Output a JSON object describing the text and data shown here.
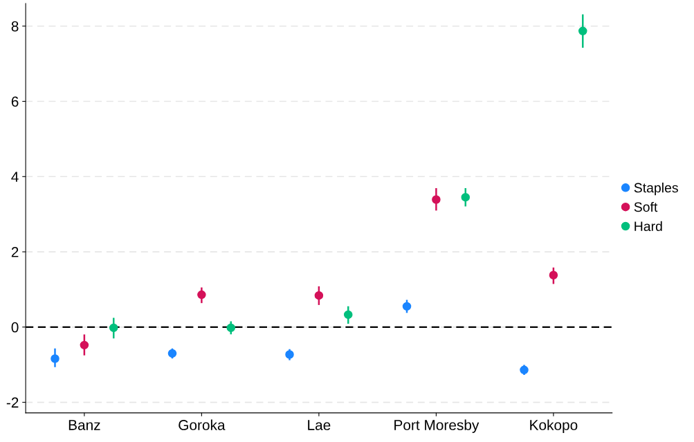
{
  "chart_data": {
    "type": "scatter",
    "categories": [
      "Banz",
      "Goroka",
      "Lae",
      "Port Moresby",
      "Kokopo"
    ],
    "series": [
      {
        "name": "Staples",
        "color": "#1a85ff",
        "values": [
          -0.84,
          -0.7,
          -0.73,
          0.55,
          -1.14
        ],
        "errors": [
          [
            -1.04,
            -0.59
          ],
          [
            -0.81,
            -0.59
          ],
          [
            -0.86,
            -0.61
          ],
          [
            0.4,
            0.7
          ],
          [
            -1.25,
            -1.03
          ]
        ]
      },
      {
        "name": "Soft",
        "color": "#d41159",
        "values": [
          -0.48,
          0.86,
          0.84,
          3.39,
          1.38
        ],
        "errors": [
          [
            -0.73,
            -0.22
          ],
          [
            0.66,
            1.03
          ],
          [
            0.61,
            1.06
          ],
          [
            3.12,
            3.67
          ],
          [
            1.17,
            1.56
          ]
        ]
      },
      {
        "name": "Hard",
        "color": "#00bf7d",
        "values": [
          -0.02,
          -0.02,
          0.33,
          3.45,
          7.87
        ],
        "errors": [
          [
            -0.28,
            0.22
          ],
          [
            -0.17,
            0.13
          ],
          [
            0.11,
            0.53
          ],
          [
            3.23,
            3.67
          ],
          [
            7.45,
            8.29
          ]
        ]
      }
    ],
    "ylim": [
      -2.28,
      8.6
    ],
    "yticks": [
      {
        "value": -2,
        "label": "-2"
      },
      0,
      2,
      4,
      6,
      8
    ],
    "grid": "y",
    "legend": "right",
    "marker": "circle",
    "ref_lines": [
      {
        "axis": "y",
        "value": 0,
        "color": "#000000",
        "line_style": "dashed"
      }
    ]
  }
}
